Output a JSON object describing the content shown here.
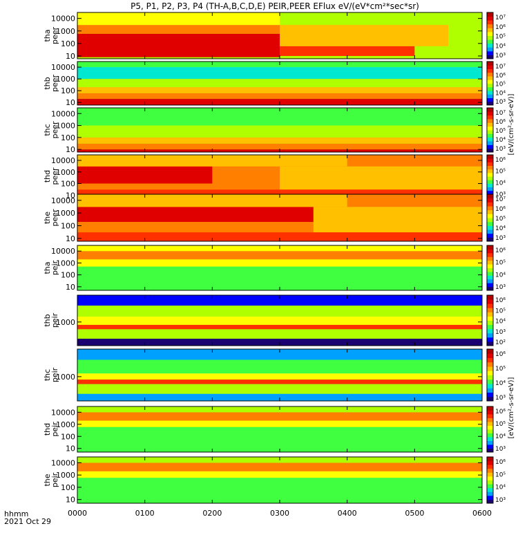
{
  "title": "P5, P1, P2, P3, P4 (TH-A,B,C,D,E) PEIR,PEER EFlux eV/(eV*cm²*sec*sr)",
  "time_axis": {
    "label_line1": "hhmm",
    "label_line2": "2021 Oct 29",
    "ticks": [
      "0000",
      "0100",
      "0200",
      "0300",
      "0400",
      "0500",
      "0600"
    ]
  },
  "colors": {
    "palette": [
      "#1a0070",
      "#0000ff",
      "#00a0ff",
      "#00e8d0",
      "#40ff40",
      "#b0ff00",
      "#ffff00",
      "#ffc000",
      "#ff8000",
      "#ff3000",
      "#e00000",
      "#b00000"
    ]
  },
  "colorbar_label_peer": "[eV/(cm²-s-sr-eV)]",
  "colorbar_label_peir": "[eV/(cm²-s-sr-eV)]",
  "chart_data": [
    {
      "type": "heatmap",
      "probe": "tha",
      "species": "peer",
      "ylabel": [
        "tha",
        "peer"
      ],
      "yscale": "log",
      "yticks": [
        "10",
        "100",
        "1000",
        "10000"
      ],
      "ylim": [
        6,
        30000
      ],
      "xlim": [
        "0000",
        "0600"
      ],
      "colorbar_ticks": [
        "10³",
        "10⁴",
        "10⁵",
        "10⁶",
        "10⁷"
      ],
      "bands": [
        {
          "y": [
            6,
            30000
          ],
          "level": 5
        },
        {
          "y": [
            8,
            600
          ],
          "level": 10,
          "x": [
            "0000",
            "0300"
          ]
        },
        {
          "y": [
            600,
            3000
          ],
          "level": 8,
          "x": [
            "0000",
            "0300"
          ]
        },
        {
          "y": [
            3000,
            30000
          ],
          "level": 6,
          "x": [
            "0000",
            "0300"
          ]
        },
        {
          "y": [
            60,
            3000
          ],
          "level": 7,
          "x": [
            "0300",
            "0530"
          ]
        },
        {
          "y": [
            10,
            60
          ],
          "level": 9,
          "x": [
            "0300",
            "0500"
          ]
        }
      ]
    },
    {
      "type": "heatmap",
      "probe": "thb",
      "species": "peer",
      "ylabel": [
        "thb",
        "peer"
      ],
      "yscale": "log",
      "yticks": [
        "10",
        "100",
        "1000",
        "10000"
      ],
      "ylim": [
        6,
        30000
      ],
      "xlim": [
        "0000",
        "0600"
      ],
      "colorbar_ticks": [
        "10³",
        "10⁴",
        "10⁵",
        "10⁶",
        "10⁷"
      ],
      "bands": [
        {
          "y": [
            6,
            30000
          ],
          "level": 3
        },
        {
          "y": [
            10000,
            30000
          ],
          "level": 4
        },
        {
          "y": [
            200,
            1000
          ],
          "level": 5
        },
        {
          "y": [
            60,
            200
          ],
          "level": 7
        },
        {
          "y": [
            20,
            60
          ],
          "level": 8
        },
        {
          "y": [
            6,
            20
          ],
          "level": 10
        }
      ]
    },
    {
      "type": "heatmap",
      "probe": "thc",
      "species": "peer",
      "ylabel": [
        "thc",
        "peer"
      ],
      "yscale": "log",
      "yticks": [
        "10",
        "100",
        "1000",
        "10000"
      ],
      "ylim": [
        6,
        30000
      ],
      "xlim": [
        "0000",
        "0600"
      ],
      "colorbar_ticks": [
        "10³",
        "10⁴",
        "10⁵",
        "10⁶",
        "10⁷"
      ],
      "bands": [
        {
          "y": [
            6,
            30000
          ],
          "level": 4
        },
        {
          "y": [
            100,
            1000
          ],
          "level": 5
        },
        {
          "y": [
            30,
            100
          ],
          "level": 7
        },
        {
          "y": [
            10,
            30
          ],
          "level": 8
        },
        {
          "y": [
            6,
            10
          ],
          "level": 10
        }
      ]
    },
    {
      "type": "heatmap",
      "probe": "thd",
      "species": "peer",
      "ylabel": [
        "thd",
        "peer"
      ],
      "yscale": "log",
      "yticks": [
        "10",
        "100",
        "1000",
        "10000"
      ],
      "ylim": [
        6,
        30000
      ],
      "xlim": [
        "0000",
        "0600"
      ],
      "colorbar_ticks": [
        "10³",
        "10⁴",
        "10⁵",
        "10⁶"
      ],
      "bands": [
        {
          "y": [
            6,
            30000
          ],
          "level": 8
        },
        {
          "y": [
            100,
            3000
          ],
          "level": 10,
          "x": [
            "0000",
            "0200"
          ]
        },
        {
          "y": [
            3000,
            30000
          ],
          "level": 7,
          "x": [
            "0000",
            "0400"
          ]
        },
        {
          "y": [
            30,
            3000
          ],
          "level": 7,
          "x": [
            "0300",
            "0600"
          ]
        },
        {
          "y": [
            6,
            30
          ],
          "level": 9
        }
      ]
    },
    {
      "type": "heatmap",
      "probe": "the",
      "species": "peer",
      "ylabel": [
        "the",
        "peer"
      ],
      "yscale": "log",
      "yticks": [
        "10",
        "100",
        "1000",
        "10000"
      ],
      "ylim": [
        6,
        30000
      ],
      "xlim": [
        "0000",
        "0600"
      ],
      "colorbar_ticks": [
        "10³",
        "10⁴",
        "10⁵",
        "10⁶",
        "10⁷"
      ],
      "bands": [
        {
          "y": [
            6,
            30000
          ],
          "level": 8
        },
        {
          "y": [
            200,
            3000
          ],
          "level": 10,
          "x": [
            "0000",
            "0330"
          ]
        },
        {
          "y": [
            3000,
            30000
          ],
          "level": 7,
          "x": [
            "0000",
            "0400"
          ]
        },
        {
          "y": [
            30,
            3000
          ],
          "level": 7,
          "x": [
            "0330",
            "0600"
          ]
        },
        {
          "y": [
            6,
            30
          ],
          "level": 9
        }
      ]
    },
    {
      "type": "heatmap",
      "probe": "tha",
      "species": "peir",
      "ylabel": [
        "tha",
        "peir"
      ],
      "yscale": "log",
      "yticks": [
        "10",
        "100",
        "1000",
        "10000"
      ],
      "ylim": [
        5,
        30000
      ],
      "xlim": [
        "0000",
        "0600"
      ],
      "colorbar_ticks": [
        "10³",
        "10⁴",
        "10⁵",
        "10⁶"
      ],
      "bands": [
        {
          "y": [
            5,
            30000
          ],
          "level": 5
        },
        {
          "y": [
            5,
            500
          ],
          "level": 4
        },
        {
          "y": [
            500,
            2000
          ],
          "level": 6
        },
        {
          "y": [
            2000,
            10000
          ],
          "level": 8
        },
        {
          "y": [
            10000,
            30000
          ],
          "level": 6
        }
      ]
    },
    {
      "type": "heatmap",
      "probe": "thb",
      "species": "peir",
      "ylabel": [
        "thb",
        "peir"
      ],
      "yscale": "log",
      "yticks": [
        "1000"
      ],
      "ylim": [
        50,
        30000
      ],
      "xlim": [
        "0000",
        "0600"
      ],
      "colorbar_ticks": [
        "10²",
        "10³",
        "10⁴",
        "10⁵",
        "10⁶"
      ],
      "bands": [
        {
          "y": [
            50,
            30000
          ],
          "level": 5
        },
        {
          "y": [
            50,
            120
          ],
          "level": 0
        },
        {
          "y": [
            120,
            400
          ],
          "level": 5
        },
        {
          "y": [
            400,
            700
          ],
          "level": 9
        },
        {
          "y": [
            700,
            2000
          ],
          "level": 6
        },
        {
          "y": [
            2000,
            8000
          ],
          "level": 5
        },
        {
          "y": [
            8000,
            30000
          ],
          "level": 1
        }
      ]
    },
    {
      "type": "heatmap",
      "probe": "thc",
      "species": "peir",
      "ylabel": [
        "thc",
        "peir"
      ],
      "yscale": "log",
      "yticks": [
        "1000"
      ],
      "ylim": [
        50,
        30000
      ],
      "xlim": [
        "0000",
        "0600"
      ],
      "colorbar_ticks": [
        "10³",
        "10⁴",
        "10⁵",
        "10⁶"
      ],
      "bands": [
        {
          "y": [
            50,
            30000
          ],
          "level": 3
        },
        {
          "y": [
            50,
            120
          ],
          "level": 2
        },
        {
          "y": [
            120,
            400
          ],
          "level": 5
        },
        {
          "y": [
            400,
            700
          ],
          "level": 9
        },
        {
          "y": [
            700,
            1500
          ],
          "level": 6
        },
        {
          "y": [
            1500,
            8000
          ],
          "level": 4
        },
        {
          "y": [
            8000,
            30000
          ],
          "level": 2
        }
      ]
    },
    {
      "type": "heatmap",
      "probe": "thd",
      "species": "peir",
      "ylabel": [
        "thd",
        "peir"
      ],
      "yscale": "log",
      "yticks": [
        "10",
        "100",
        "1000",
        "10000"
      ],
      "ylim": [
        5,
        30000
      ],
      "xlim": [
        "0000",
        "0600"
      ],
      "colorbar_ticks": [
        "10³",
        "10⁴",
        "10⁵",
        "10⁶"
      ],
      "bands": [
        {
          "y": [
            5,
            30000
          ],
          "level": 5
        },
        {
          "y": [
            5,
            600
          ],
          "level": 4
        },
        {
          "y": [
            600,
            2000
          ],
          "level": 6
        },
        {
          "y": [
            2000,
            10000
          ],
          "level": 8
        },
        {
          "y": [
            10000,
            30000
          ],
          "level": 5
        }
      ]
    },
    {
      "type": "heatmap",
      "probe": "the",
      "species": "peir",
      "ylabel": [
        "the",
        "peir"
      ],
      "yscale": "log",
      "yticks": [
        "10",
        "100",
        "1000",
        "10000"
      ],
      "ylim": [
        5,
        30000
      ],
      "xlim": [
        "0000",
        "0600"
      ],
      "colorbar_ticks": [
        "10³",
        "10⁴",
        "10⁵",
        "10⁶"
      ],
      "bands": [
        {
          "y": [
            5,
            30000
          ],
          "level": 5
        },
        {
          "y": [
            5,
            600
          ],
          "level": 4
        },
        {
          "y": [
            600,
            2000
          ],
          "level": 6
        },
        {
          "y": [
            2000,
            10000
          ],
          "level": 8
        },
        {
          "y": [
            10000,
            30000
          ],
          "level": 5
        }
      ]
    }
  ]
}
